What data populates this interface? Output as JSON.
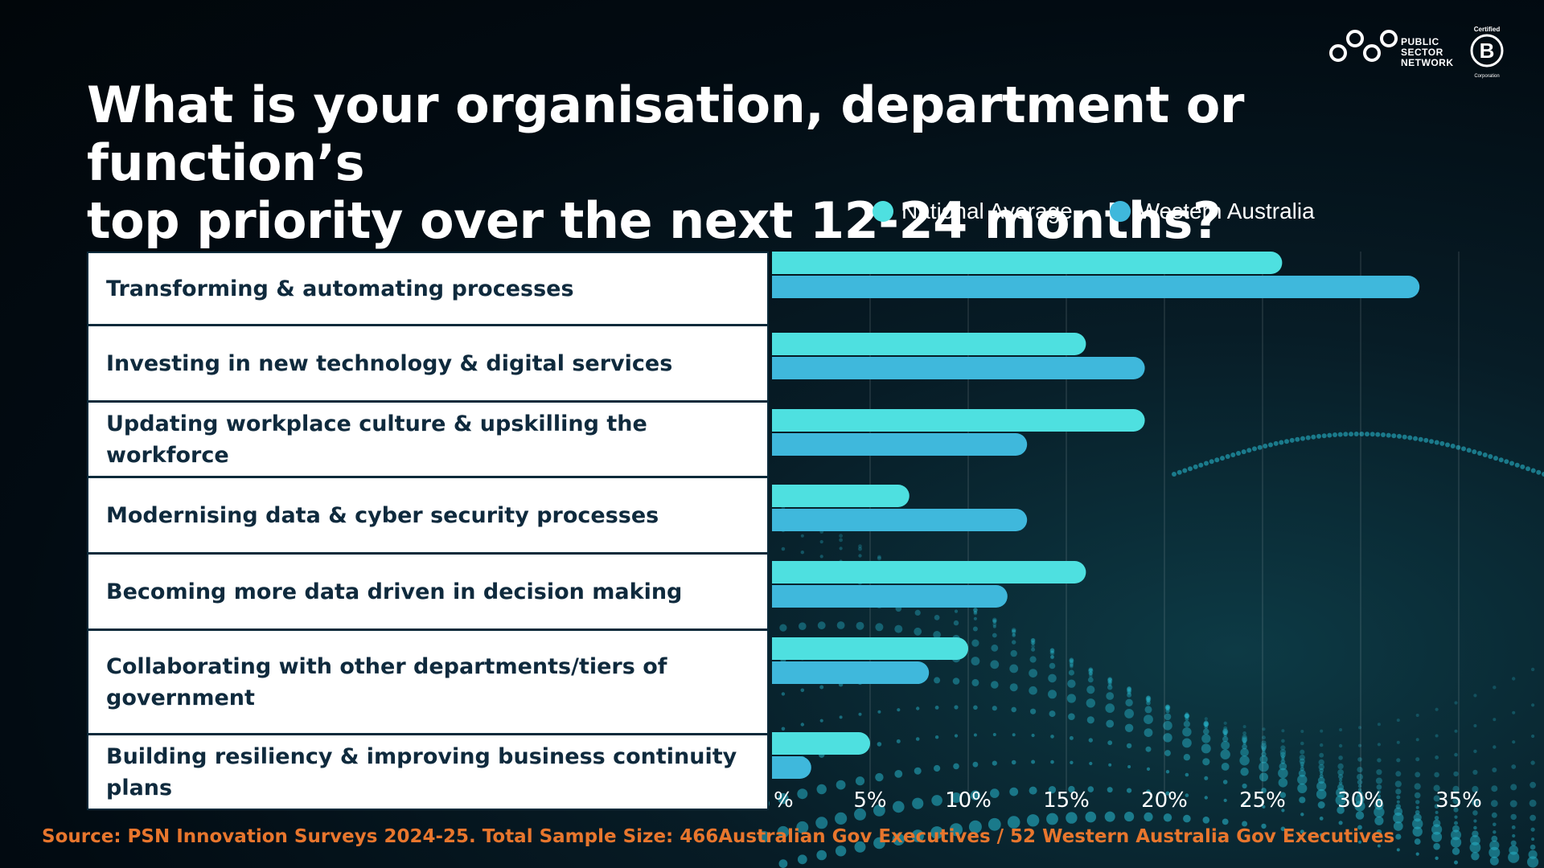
{
  "title": {
    "line1": "What is your organisation, department or function’s",
    "line2": "top priority over the next 12-24 months?"
  },
  "logo": {
    "line1": "PUBLIC",
    "line2": "SECTOR",
    "line3": "NETWORK",
    "bcorp_top": "Certified",
    "bcorp_letter": "B",
    "bcorp_bottom": "Corporation"
  },
  "colors": {
    "national": "#4ee0e0",
    "western": "#3fb8dc",
    "source_text": "#e8762d"
  },
  "chart_data": {
    "type": "bar",
    "orientation": "horizontal",
    "categories": [
      "Transforming & automating processes",
      "Investing in new technology & digital services",
      "Updating workplace culture & upskilling the workforce",
      "Modernising data & cyber security processes",
      "Becoming more data driven in decision making",
      "Collaborating with other departments/tiers of government",
      "Building resiliency & improving business continuity plans"
    ],
    "series": [
      {
        "name": "National Average",
        "values": [
          26,
          16,
          19,
          7,
          16,
          10,
          5
        ]
      },
      {
        "name": "Western Australia",
        "values": [
          33,
          19,
          13,
          13,
          12,
          8,
          2
        ]
      }
    ],
    "xlim": [
      0,
      35
    ],
    "xticks": [
      "%",
      "5%",
      "10%",
      "15%",
      "20%",
      "25%",
      "30%",
      "35%"
    ],
    "grid": true,
    "legend": "top-right"
  },
  "source": "Source: PSN Innovation Surveys 2024-25. Total Sample Size: 466Australian Gov Executives / 52 Western Australia Gov Executives"
}
